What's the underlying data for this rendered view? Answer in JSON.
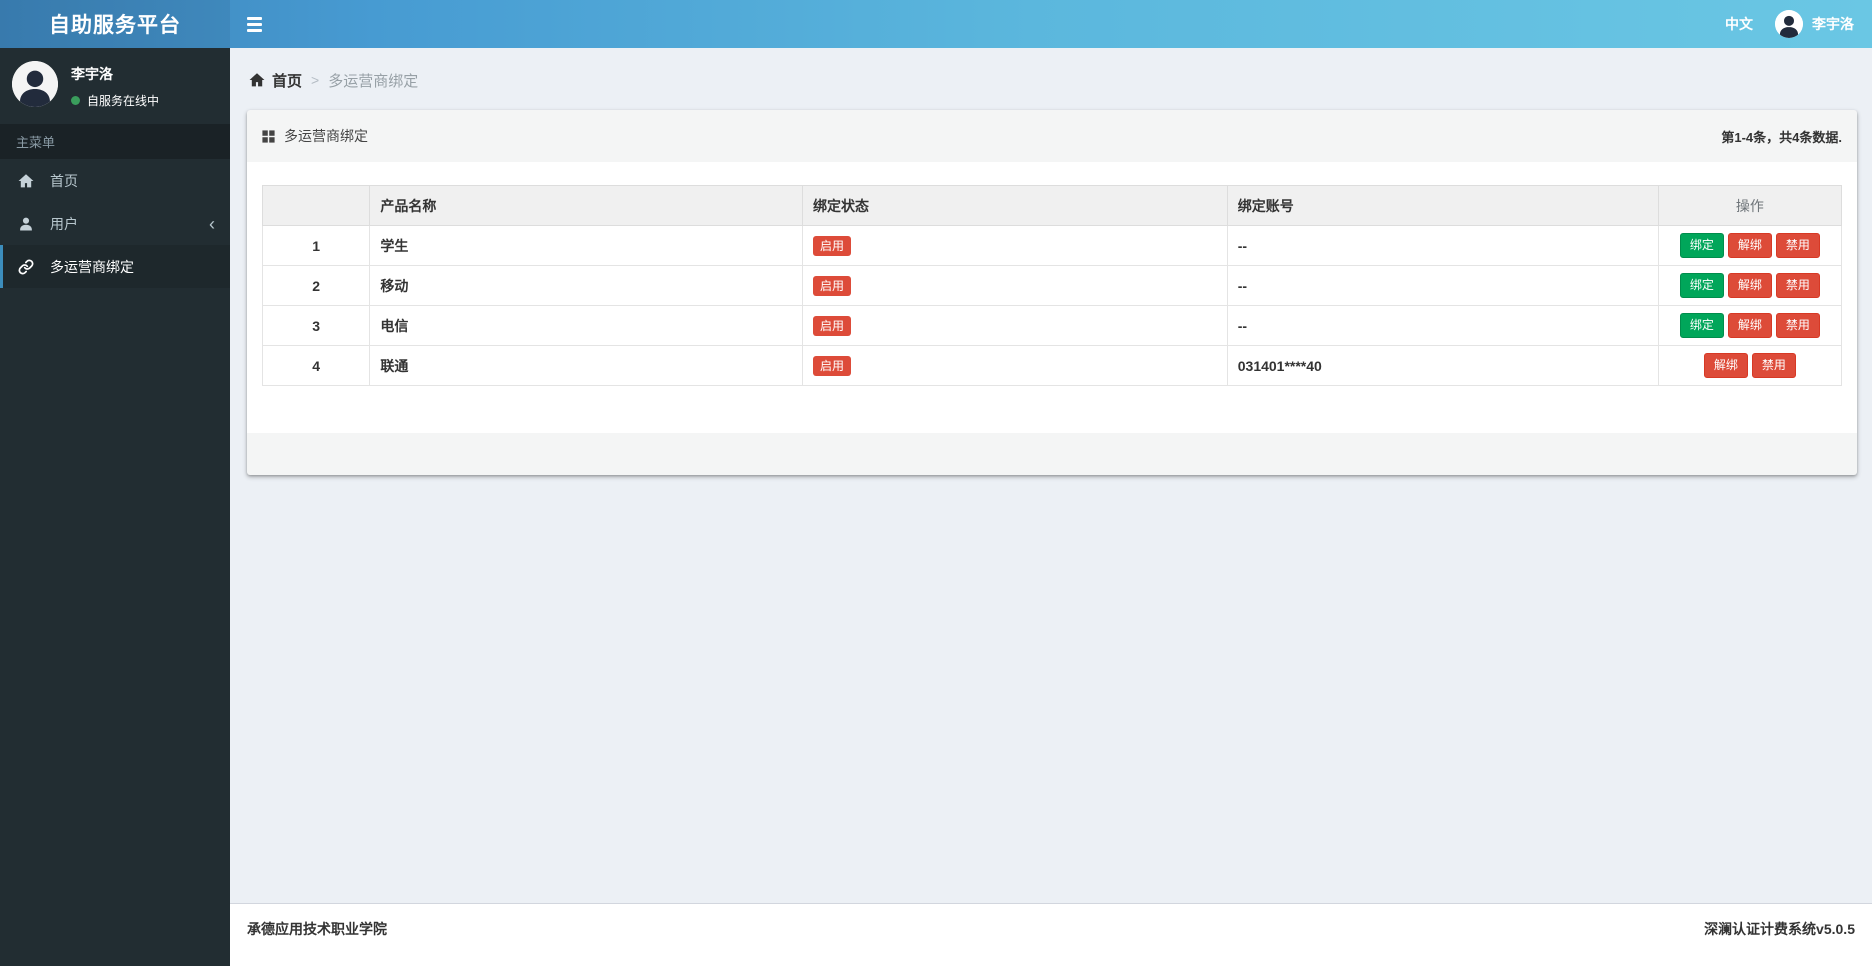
{
  "app": {
    "title": "自助服务平台",
    "language_label": "中文",
    "navbar_username": "李宇洛"
  },
  "sidebar": {
    "user": {
      "name": "李宇洛",
      "status": "自服务在线中"
    },
    "menu_header": "主菜单",
    "items": [
      {
        "label": "首页",
        "icon": "home-icon",
        "active": false
      },
      {
        "label": "用户",
        "icon": "user-icon",
        "active": false,
        "collapsible": true
      },
      {
        "label": "多运营商绑定",
        "icon": "link-icon",
        "active": true
      }
    ]
  },
  "breadcrumb": {
    "home": "首页",
    "separator": ">",
    "current": "多运营商绑定"
  },
  "panel": {
    "title": "多运营商绑定",
    "pagination_summary": "第1-4条，共4条数据."
  },
  "table": {
    "headers": [
      "",
      "产品名称",
      "绑定状态",
      "绑定账号",
      "操作"
    ],
    "rows": [
      {
        "index": "1",
        "product": "学生",
        "status": "启用",
        "account": "--",
        "actions": [
          {
            "label": "绑定",
            "style": "btn-success",
            "name": "bind-button"
          },
          {
            "label": "解绑",
            "style": "btn-danger",
            "name": "unbind-button"
          },
          {
            "label": "禁用",
            "style": "btn-danger",
            "name": "disable-button"
          }
        ]
      },
      {
        "index": "2",
        "product": "移动",
        "status": "启用",
        "account": "--",
        "actions": [
          {
            "label": "绑定",
            "style": "btn-success",
            "name": "bind-button"
          },
          {
            "label": "解绑",
            "style": "btn-danger",
            "name": "unbind-button"
          },
          {
            "label": "禁用",
            "style": "btn-danger",
            "name": "disable-button"
          }
        ]
      },
      {
        "index": "3",
        "product": "电信",
        "status": "启用",
        "account": "--",
        "actions": [
          {
            "label": "绑定",
            "style": "btn-success",
            "name": "bind-button"
          },
          {
            "label": "解绑",
            "style": "btn-danger",
            "name": "unbind-button"
          },
          {
            "label": "禁用",
            "style": "btn-danger",
            "name": "disable-button"
          }
        ]
      },
      {
        "index": "4",
        "product": "联通",
        "status": "启用",
        "account": "031401****40",
        "actions": [
          {
            "label": "解绑",
            "style": "btn-danger",
            "name": "unbind-button"
          },
          {
            "label": "禁用",
            "style": "btn-danger",
            "name": "disable-button"
          }
        ]
      }
    ]
  },
  "footer": {
    "left": "承德应用技术职业学院",
    "right": "深澜认证计费系统v5.0.5"
  },
  "colors": {
    "navbar_gradient_start": "#3c82b8",
    "navbar_gradient_end": "#6ac7e4",
    "sidebar_bg": "#222d32",
    "accent": "#3c8dbc",
    "danger": "#dd4b39",
    "success": "#00a65a",
    "status_dot": "#3a9d5c",
    "content_bg": "#ecf0f5"
  }
}
